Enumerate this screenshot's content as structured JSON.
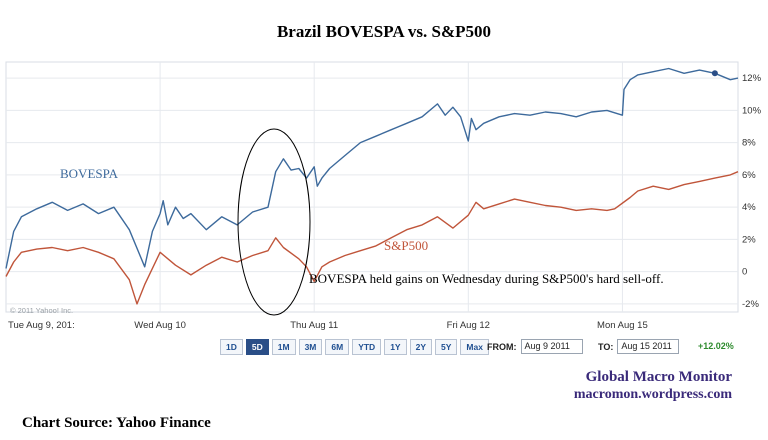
{
  "title": "Brazil BOVESPA vs. S&P500",
  "copyright": "© 2011 Yahoo! Inc.",
  "chart_data": {
    "type": "line",
    "title": "Brazil BOVESPA vs. S&P500",
    "x_tick_labels": [
      "Tue Aug 9, 201:",
      "Wed Aug 10",
      "Thu Aug 11",
      "Fri Aug 12",
      "Mon Aug 15"
    ],
    "y_tick_labels": [
      "12%",
      "10%",
      "8%",
      "6%",
      "4%",
      "2%",
      "0",
      "-2%"
    ],
    "ylim": [
      -2.5,
      13
    ],
    "y_axis_side": "right",
    "grid": true,
    "series": [
      {
        "name": "BOVESPA",
        "color": "#3d6a9c",
        "x": [
          0,
          0.05,
          0.1,
          0.2,
          0.3,
          0.4,
          0.5,
          0.6,
          0.7,
          0.8,
          0.9,
          0.95,
          1.0,
          1.02,
          1.05,
          1.1,
          1.15,
          1.2,
          1.3,
          1.4,
          1.5,
          1.6,
          1.7,
          1.75,
          1.8,
          1.85,
          1.9,
          1.95,
          2.0,
          2.02,
          2.05,
          2.1,
          2.2,
          2.3,
          2.4,
          2.5,
          2.6,
          2.7,
          2.8,
          2.85,
          2.9,
          2.95,
          3.0,
          3.02,
          3.05,
          3.1,
          3.2,
          3.3,
          3.4,
          3.5,
          3.6,
          3.7,
          3.8,
          3.9,
          4.0,
          4.01,
          4.05,
          4.1,
          4.2,
          4.3,
          4.4,
          4.5,
          4.6,
          4.7,
          4.75
        ],
        "y": [
          0.2,
          2.5,
          3.4,
          3.9,
          4.3,
          3.8,
          4.2,
          3.6,
          4.0,
          2.6,
          0.3,
          2.5,
          3.6,
          4.4,
          2.9,
          4.0,
          3.3,
          3.6,
          2.6,
          3.4,
          2.9,
          3.7,
          4.0,
          6.2,
          7.0,
          6.3,
          6.4,
          5.8,
          6.5,
          5.3,
          5.8,
          6.4,
          7.2,
          8.0,
          8.4,
          8.8,
          9.2,
          9.6,
          10.4,
          9.7,
          10.2,
          9.6,
          8.1,
          9.5,
          8.8,
          9.2,
          9.6,
          9.8,
          9.7,
          9.9,
          9.8,
          9.6,
          9.9,
          10.0,
          9.7,
          11.3,
          11.9,
          12.2,
          12.4,
          12.6,
          12.3,
          12.5,
          12.3,
          11.9,
          12.0
        ]
      },
      {
        "name": "S&P500",
        "color": "#c0553a",
        "x": [
          0,
          0.05,
          0.1,
          0.2,
          0.3,
          0.4,
          0.5,
          0.6,
          0.7,
          0.8,
          0.85,
          0.9,
          1.0,
          1.1,
          1.2,
          1.3,
          1.4,
          1.5,
          1.6,
          1.7,
          1.75,
          1.8,
          1.9,
          1.95,
          2.0,
          2.05,
          2.1,
          2.2,
          2.3,
          2.4,
          2.5,
          2.6,
          2.7,
          2.8,
          2.9,
          3.0,
          3.05,
          3.1,
          3.2,
          3.3,
          3.4,
          3.5,
          3.6,
          3.7,
          3.8,
          3.9,
          3.95,
          4.05,
          4.1,
          4.2,
          4.3,
          4.4,
          4.5,
          4.6,
          4.7,
          4.75
        ],
        "y": [
          -0.3,
          0.6,
          1.2,
          1.4,
          1.5,
          1.3,
          1.5,
          1.2,
          0.8,
          -0.5,
          -2.0,
          -0.8,
          1.2,
          0.4,
          -0.2,
          0.4,
          0.9,
          0.6,
          1.0,
          1.3,
          2.1,
          1.5,
          0.8,
          0.3,
          -0.6,
          0.3,
          0.6,
          1.0,
          1.3,
          1.6,
          2.1,
          2.6,
          2.9,
          3.4,
          2.7,
          3.5,
          4.3,
          3.9,
          4.2,
          4.5,
          4.3,
          4.1,
          4.0,
          3.8,
          3.9,
          3.8,
          3.9,
          4.6,
          5.0,
          5.3,
          5.1,
          5.4,
          5.6,
          5.8,
          6.0,
          6.2
        ]
      }
    ],
    "annotations": [
      "BOVESPA held gains on Wednesday during S&P500's hard sell-off."
    ]
  },
  "controls": {
    "range_buttons": [
      "1D",
      "5D",
      "1M",
      "3M",
      "6M",
      "YTD",
      "1Y",
      "2Y",
      "5Y",
      "Max"
    ],
    "active_range": "5D",
    "from_label": "FROM:",
    "from_value": "Aug 9 2011",
    "to_label": "TO:",
    "to_value": "Aug 15 2011",
    "change": "+12.02%",
    "change_color": "#2e8b2e"
  },
  "branding": {
    "name": "Global Macro Monitor",
    "url": "macromon.wordpress.com"
  },
  "source": "Chart Source:  Yahoo Finance"
}
